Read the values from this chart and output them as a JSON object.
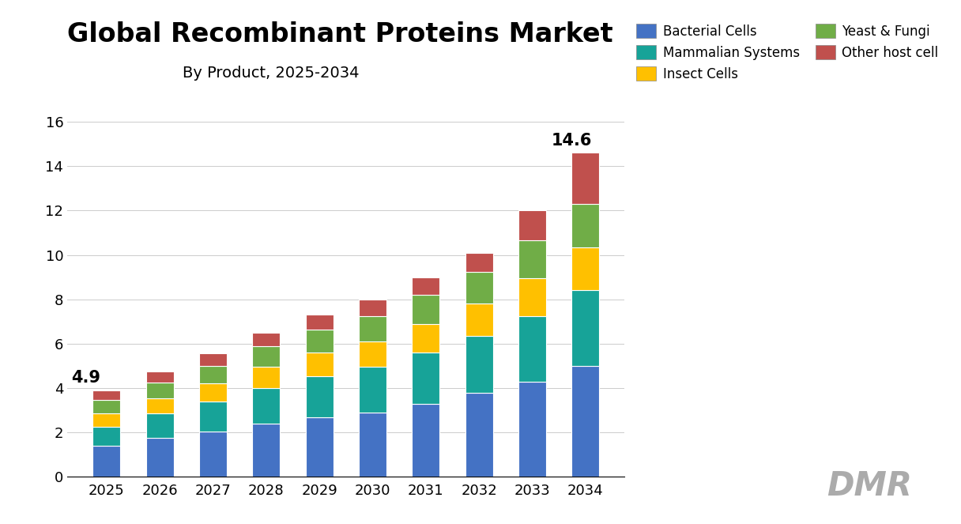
{
  "title": "Global Recombinant Proteins Market",
  "subtitle": "By Product, 2025-2034",
  "years": [
    2025,
    2026,
    2027,
    2028,
    2029,
    2030,
    2031,
    2032,
    2033,
    2034
  ],
  "segments": {
    "Bacterial Cells": [
      1.4,
      1.75,
      2.05,
      2.4,
      2.7,
      2.9,
      3.3,
      3.8,
      4.3,
      5.0
    ],
    "Mammalian Systems": [
      0.85,
      1.1,
      1.35,
      1.6,
      1.85,
      2.05,
      2.3,
      2.55,
      2.95,
      3.4
    ],
    "Insect Cells": [
      0.6,
      0.7,
      0.8,
      0.95,
      1.05,
      1.15,
      1.3,
      1.45,
      1.7,
      1.95
    ],
    "Yeast & Fungi": [
      0.6,
      0.7,
      0.8,
      0.95,
      1.05,
      1.15,
      1.3,
      1.45,
      1.7,
      1.95
    ],
    "Other host cell": [
      0.45,
      0.5,
      0.55,
      0.6,
      0.65,
      0.75,
      0.8,
      0.85,
      1.35,
      2.3
    ]
  },
  "totals_label": {
    "2025": "4.9",
    "2034": "14.6"
  },
  "colors": {
    "Bacterial Cells": "#4472C4",
    "Mammalian Systems": "#17A398",
    "Insect Cells": "#FFC000",
    "Yeast & Fungi": "#70AD47",
    "Other host cell": "#C0504D"
  },
  "ylim": [
    0,
    17
  ],
  "yticks": [
    0,
    2,
    4,
    6,
    8,
    10,
    12,
    14,
    16
  ],
  "background_color": "#FFFFFF",
  "title_fontsize": 24,
  "subtitle_fontsize": 14,
  "tick_fontsize": 13,
  "legend_fontsize": 12,
  "annotation_fontsize": 15,
  "bar_width": 0.52
}
